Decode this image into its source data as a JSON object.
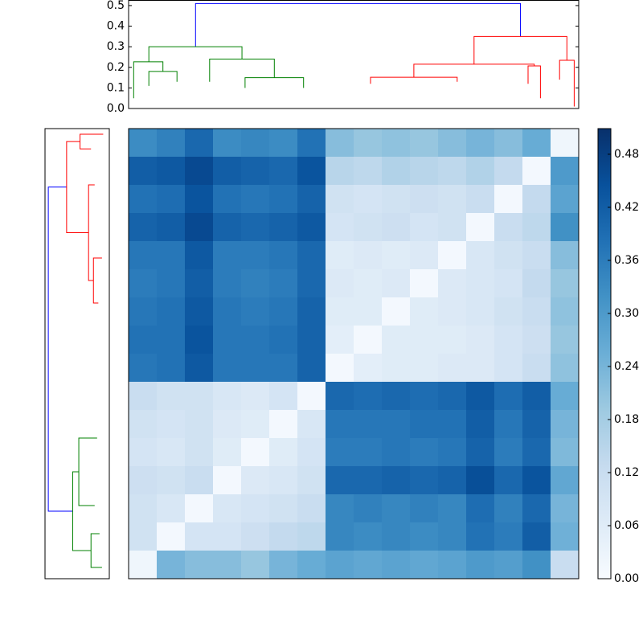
{
  "chart_data": {
    "type": "heatmap",
    "matrix": [
      [
        0.33,
        0.35,
        0.4,
        0.33,
        0.34,
        0.33,
        0.38,
        0.22,
        0.2,
        0.21,
        0.2,
        0.22,
        0.24,
        0.22,
        0.26,
        0.02
      ],
      [
        0.42,
        0.43,
        0.46,
        0.42,
        0.41,
        0.4,
        0.44,
        0.15,
        0.14,
        0.16,
        0.15,
        0.14,
        0.16,
        0.13,
        0.01,
        0.3
      ],
      [
        0.38,
        0.39,
        0.44,
        0.38,
        0.37,
        0.38,
        0.41,
        0.1,
        0.09,
        0.1,
        0.11,
        0.1,
        0.12,
        0.01,
        0.13,
        0.28
      ],
      [
        0.41,
        0.42,
        0.46,
        0.41,
        0.4,
        0.41,
        0.43,
        0.09,
        0.1,
        0.11,
        0.09,
        0.1,
        0.01,
        0.12,
        0.14,
        0.32
      ],
      [
        0.37,
        0.37,
        0.43,
        0.36,
        0.36,
        0.37,
        0.4,
        0.06,
        0.07,
        0.06,
        0.07,
        0.01,
        0.08,
        0.1,
        0.12,
        0.22
      ],
      [
        0.36,
        0.37,
        0.42,
        0.36,
        0.35,
        0.36,
        0.4,
        0.07,
        0.06,
        0.07,
        0.01,
        0.07,
        0.08,
        0.09,
        0.13,
        0.2
      ],
      [
        0.37,
        0.38,
        0.43,
        0.37,
        0.36,
        0.37,
        0.41,
        0.06,
        0.06,
        0.01,
        0.06,
        0.07,
        0.08,
        0.1,
        0.12,
        0.21
      ],
      [
        0.38,
        0.38,
        0.44,
        0.37,
        0.37,
        0.38,
        0.41,
        0.05,
        0.01,
        0.06,
        0.06,
        0.06,
        0.07,
        0.09,
        0.11,
        0.2
      ],
      [
        0.37,
        0.38,
        0.43,
        0.37,
        0.37,
        0.37,
        0.41,
        0.01,
        0.05,
        0.06,
        0.06,
        0.07,
        0.07,
        0.09,
        0.12,
        0.21
      ],
      [
        0.12,
        0.1,
        0.1,
        0.08,
        0.07,
        0.09,
        0.01,
        0.4,
        0.39,
        0.4,
        0.39,
        0.4,
        0.43,
        0.39,
        0.42,
        0.26
      ],
      [
        0.1,
        0.09,
        0.1,
        0.07,
        0.06,
        0.01,
        0.08,
        0.37,
        0.37,
        0.37,
        0.38,
        0.38,
        0.42,
        0.37,
        0.41,
        0.24
      ],
      [
        0.09,
        0.08,
        0.1,
        0.06,
        0.01,
        0.06,
        0.09,
        0.36,
        0.36,
        0.37,
        0.36,
        0.37,
        0.41,
        0.36,
        0.4,
        0.23
      ],
      [
        0.11,
        0.1,
        0.12,
        0.01,
        0.07,
        0.08,
        0.1,
        0.4,
        0.4,
        0.41,
        0.4,
        0.41,
        0.45,
        0.4,
        0.44,
        0.27
      ],
      [
        0.1,
        0.08,
        0.01,
        0.08,
        0.09,
        0.1,
        0.12,
        0.34,
        0.35,
        0.34,
        0.35,
        0.34,
        0.39,
        0.35,
        0.4,
        0.24
      ],
      [
        0.1,
        0.01,
        0.09,
        0.09,
        0.11,
        0.13,
        0.14,
        0.34,
        0.33,
        0.34,
        0.33,
        0.34,
        0.38,
        0.36,
        0.42,
        0.25
      ],
      [
        0.02,
        0.24,
        0.22,
        0.22,
        0.2,
        0.24,
        0.26,
        0.28,
        0.27,
        0.28,
        0.27,
        0.28,
        0.3,
        0.29,
        0.32,
        0.12
      ]
    ],
    "clim": [
      0,
      0.509
    ],
    "colorbar_ticks": [
      {
        "value": 0,
        "label": "0.00"
      },
      0.06,
      0.12,
      0.18,
      0.24,
      {
        "value": 0.3,
        "label": "0.30"
      },
      0.36,
      0.42,
      0.48
    ],
    "top_dendrogram": {
      "xlim": [
        0,
        80
      ],
      "ylim": [
        0,
        0.527
      ],
      "yticks": [
        {
          "value": 0,
          "label": "0.0"
        },
        0.1,
        0.2,
        0.3,
        0.4,
        0.5
      ],
      "links": [
        {
          "x": [
            11.9,
            69.65
          ],
          "h": [
            0.3,
            0.51,
            0.35
          ],
          "color": "#0000ff"
        },
        {
          "x": [
            3.6,
            20.15
          ],
          "h": [
            0.227,
            0.3,
            0.24
          ],
          "color": "#008000"
        },
        {
          "x": [
            0.9,
            6.1
          ],
          "h": [
            0.05,
            0.227,
            0.18
          ],
          "color": "#008000"
        },
        {
          "x": [
            3.6,
            8.6
          ],
          "h": [
            0.11,
            0.18,
            0.13
          ],
          "color": "#008000"
        },
        {
          "x": [
            14.4,
            25.9
          ],
          "h": [
            0.13,
            0.24,
            0.15
          ],
          "color": "#008000"
        },
        {
          "x": [
            20.7,
            31.1
          ],
          "h": [
            0.1,
            0.15,
            0.1
          ],
          "color": "#008000"
        },
        {
          "x": [
            61.4,
            77.9
          ],
          "h": [
            0.215,
            0.35,
            0.234
          ],
          "color": "#ff0000"
        },
        {
          "x": [
            50.7,
            72.1
          ],
          "h": [
            0.152,
            0.215,
            0.207
          ],
          "color": "#ff0000"
        },
        {
          "x": [
            43,
            58.4
          ],
          "h": [
            0.12,
            0.152,
            0.13
          ],
          "color": "#ff0000"
        },
        {
          "x": [
            76.6,
            79.2
          ],
          "h": [
            0.14,
            0.234,
            0.01
          ],
          "color": "#ff0000"
        },
        {
          "x": [
            71,
            73.2
          ],
          "h": [
            0.12,
            0.207,
            0.05
          ],
          "color": "#ff0000"
        }
      ]
    },
    "left_dendrogram": {
      "ylim": [
        0,
        80
      ],
      "hlim": [
        0,
        0.527
      ],
      "links": [
        {
          "y": [
            10.4,
            68
          ],
          "h": [
            0.35,
            0.5,
            0.3
          ],
          "color": "#0000ff"
        },
        {
          "y": [
            2.3,
            18.5
          ],
          "h": [
            0.24,
            0.35,
            0.17
          ],
          "color": "#ff0000"
        },
        {
          "y": [
            1,
            3.6
          ],
          "h": [
            0.05,
            0.24,
            0.15
          ],
          "color": "#ff0000"
        },
        {
          "y": [
            10,
            27
          ],
          "h": [
            0.12,
            0.17,
            0.13
          ],
          "color": "#ff0000"
        },
        {
          "y": [
            23,
            31
          ],
          "h": [
            0.06,
            0.13,
            0.09
          ],
          "color": "#ff0000"
        },
        {
          "y": [
            61,
            75
          ],
          "h": [
            0.25,
            0.3,
            0.15
          ],
          "color": "#008000"
        },
        {
          "y": [
            55,
            67
          ],
          "h": [
            0.1,
            0.25,
            0.12
          ],
          "color": "#008000"
        },
        {
          "y": [
            72,
            78
          ],
          "h": [
            0.08,
            0.15,
            0.06
          ],
          "color": "#008000"
        }
      ]
    }
  }
}
